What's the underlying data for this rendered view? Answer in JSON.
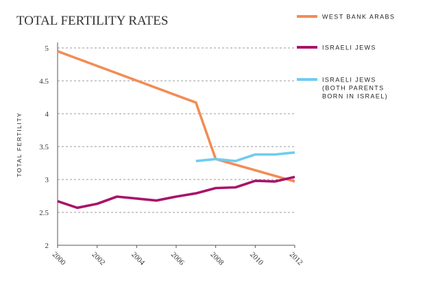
{
  "chart_data": {
    "type": "line",
    "title": "TOTAL FERTILITY RATES",
    "xlabel": "",
    "ylabel": "TOTAL FERTILITY",
    "xlim": [
      2000,
      2012
    ],
    "ylim": [
      2,
      5
    ],
    "x_ticks": [
      "2000",
      "2002",
      "2004",
      "2006",
      "2008",
      "2010",
      "2012"
    ],
    "y_ticks": [
      "2",
      "2.5",
      "3",
      "3.5",
      "4",
      "4.5",
      "5"
    ],
    "grid": "horizontal dashed",
    "legend_position": "right",
    "series": [
      {
        "name": "WEST BANK ARABS",
        "color": "#F28C55",
        "x": [
          2000,
          2007,
          2008,
          2012
        ],
        "values": [
          4.95,
          4.17,
          3.31,
          2.97
        ]
      },
      {
        "name": "ISRAELI JEWS",
        "color": "#A8136A",
        "x": [
          2000,
          2001,
          2002,
          2003,
          2004,
          2005,
          2006,
          2007,
          2008,
          2009,
          2010,
          2011,
          2012
        ],
        "values": [
          2.67,
          2.57,
          2.63,
          2.74,
          2.71,
          2.68,
          2.74,
          2.79,
          2.87,
          2.88,
          2.98,
          2.97,
          3.04
        ]
      },
      {
        "name": "ISRAELI JEWS",
        "name_lines": [
          "ISRAELI JEWS",
          "(BOTH PARENTS",
          "BORN IN ISRAEL)"
        ],
        "color": "#6FCCF0",
        "x": [
          2007,
          2008,
          2009,
          2010,
          2011,
          2012
        ],
        "values": [
          3.28,
          3.31,
          3.28,
          3.38,
          3.38,
          3.41
        ]
      }
    ]
  }
}
